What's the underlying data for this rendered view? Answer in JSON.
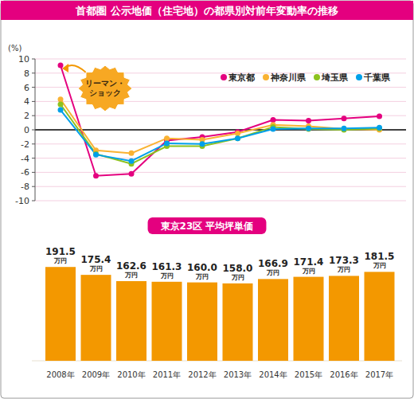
{
  "chart_data": [
    {
      "type": "line",
      "title": "首都圏 公示地価（住宅地）の都県別対前年変動率の推移",
      "y_label": "(%)",
      "annotation": "リーマン・ショック",
      "categories": [
        "2008年",
        "2009年",
        "2010年",
        "2011年",
        "2012年",
        "2013年",
        "2014年",
        "2015年",
        "2016年",
        "2017年"
      ],
      "series": [
        {
          "name": "東京都",
          "color": "#e4007f",
          "values": [
            9.1,
            -6.5,
            -6.2,
            -1.5,
            -1.0,
            -0.3,
            1.4,
            1.3,
            1.6,
            1.9
          ]
        },
        {
          "name": "神奈川県",
          "color": "#f9b233",
          "values": [
            4.3,
            -2.9,
            -3.3,
            -1.2,
            -1.4,
            -0.5,
            0.7,
            0.5,
            0.1,
            0.0
          ]
        },
        {
          "name": "埼玉県",
          "color": "#8dc21f",
          "values": [
            3.6,
            -3.4,
            -4.8,
            -2.3,
            -2.3,
            -1.2,
            0.4,
            0.1,
            0.0,
            0.2
          ]
        },
        {
          "name": "千葉県",
          "color": "#00a0e9",
          "values": [
            2.8,
            -3.5,
            -4.4,
            -1.9,
            -2.0,
            -1.2,
            0.1,
            0.2,
            0.2,
            0.3
          ]
        }
      ],
      "ylim": [
        -10,
        10
      ],
      "yticks": [
        10,
        8,
        6,
        4,
        2,
        0,
        -2,
        -4,
        -6,
        -8,
        -10
      ],
      "grid": true,
      "legend": "top-right",
      "marker": "circle",
      "tick_labels": "y"
    },
    {
      "type": "bar",
      "title": "東京23区 平均坪単価",
      "categories": [
        "2008年",
        "2009年",
        "2010年",
        "2011年",
        "2012年",
        "2013年",
        "2014年",
        "2015年",
        "2016年",
        "2017年"
      ],
      "values": [
        191.5,
        175.4,
        162.6,
        161.3,
        160.0,
        158.0,
        166.9,
        171.4,
        173.3,
        181.5
      ],
      "value_labels": [
        "191.5万円",
        "175.4万円",
        "162.6万円",
        "161.3万円",
        "160.0万円",
        "158.0万円",
        "166.9万円",
        "171.4万円",
        "173.3万円",
        "181.5万円"
      ],
      "color": "#f39800",
      "ylim": [
        0,
        200
      ],
      "data_labels": true,
      "tick_labels": "x"
    }
  ]
}
